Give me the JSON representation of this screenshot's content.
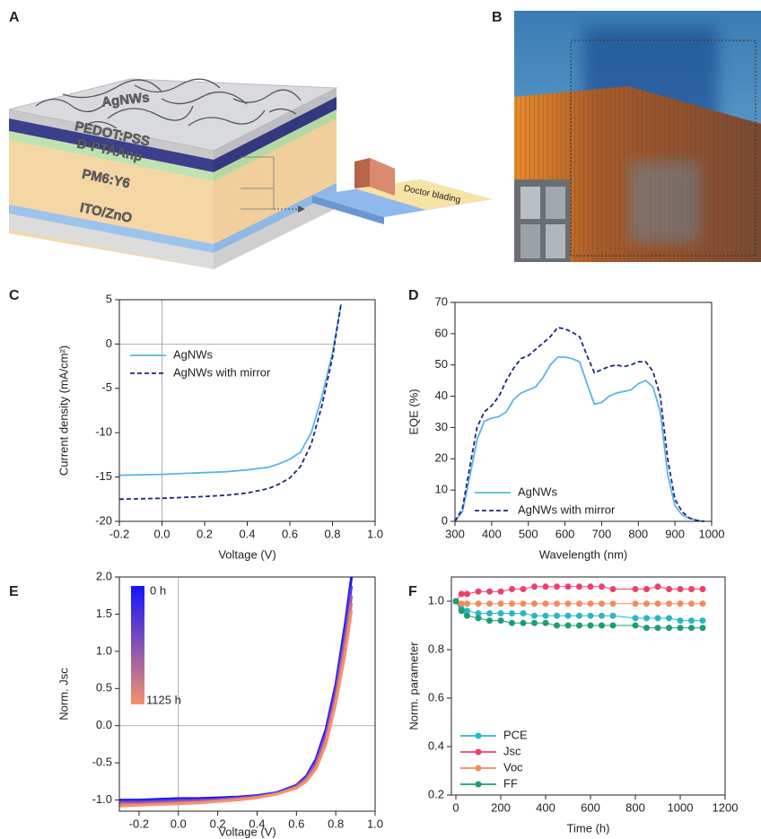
{
  "panel_labels": [
    "A",
    "B",
    "C",
    "D",
    "E",
    "F"
  ],
  "diagram": {
    "layers": [
      "AgNWs",
      "PEDOT:PSS",
      "D-PTAAnp",
      "PM6:Y6",
      "ITO/ZnO"
    ],
    "tool_label": "Doctor blading"
  },
  "chart_data": [
    {
      "type": "line",
      "x_label": "Voltage (V)",
      "y_label": "Current density (mA/cm²)",
      "xlim": [
        -0.2,
        1.0
      ],
      "ylim": [
        -20,
        5
      ],
      "xticks": [
        -0.2,
        {
          "value": 0,
          "label": "0.0"
        },
        0.2,
        0.4,
        0.6,
        0.8,
        {
          "value": 1,
          "label": "1.0"
        }
      ],
      "yticks": [
        -20,
        -15,
        -10,
        -5,
        0,
        5
      ],
      "ref_lines": {
        "x": 0,
        "y": 0
      },
      "legend": "upper left",
      "x": [
        -0.2,
        -0.1,
        0,
        0.1,
        0.2,
        0.3,
        0.4,
        0.5,
        0.55,
        0.6,
        0.65,
        0.7,
        0.75,
        0.8,
        0.84
      ],
      "series": [
        {
          "name": "AgNWs",
          "color": "#5ab4ea",
          "dash": false,
          "values": [
            -14.8,
            -14.75,
            -14.7,
            -14.6,
            -14.5,
            -14.4,
            -14.2,
            -13.9,
            -13.5,
            -13.0,
            -12.2,
            -10,
            -6,
            -1.0,
            4.5
          ]
        },
        {
          "name": "AgNWs with mirror",
          "color": "#1c2a7a",
          "dash": true,
          "values": [
            -17.5,
            -17.45,
            -17.4,
            -17.3,
            -17.2,
            -17.05,
            -16.8,
            -16.3,
            -15.8,
            -15.1,
            -13.8,
            -11.3,
            -7,
            -1.5,
            4.5
          ]
        }
      ]
    },
    {
      "type": "line",
      "x_label": "Wavelength (nm)",
      "y_label": "EQE (%)",
      "xlim": [
        300,
        1000
      ],
      "ylim": [
        0,
        70
      ],
      "xticks": [
        300,
        400,
        500,
        600,
        700,
        800,
        900,
        1000
      ],
      "yticks": [
        0,
        10,
        20,
        30,
        40,
        50,
        60,
        70
      ],
      "legend": "lower center",
      "x": [
        300,
        320,
        340,
        360,
        380,
        400,
        420,
        440,
        460,
        480,
        500,
        520,
        540,
        560,
        580,
        600,
        620,
        640,
        660,
        680,
        700,
        720,
        740,
        760,
        780,
        800,
        820,
        840,
        860,
        880,
        900,
        920,
        940,
        960,
        980
      ],
      "series": [
        {
          "name": "AgNWs",
          "color": "#5ab4ea",
          "dash": false,
          "values": [
            0,
            3,
            14,
            26,
            32,
            33,
            33.5,
            35,
            39,
            41,
            42,
            43,
            46,
            50,
            52.5,
            52.5,
            52,
            51,
            44,
            37.5,
            38,
            40,
            41,
            41.5,
            42,
            44,
            45,
            43,
            35,
            15,
            5,
            2,
            1,
            0.3,
            0
          ]
        },
        {
          "name": "AgNWs with mirror",
          "color": "#1c2a7a",
          "dash": true,
          "values": [
            0,
            4,
            17,
            30,
            35,
            37,
            40,
            45,
            49,
            52,
            53,
            55,
            57,
            59,
            62,
            61.5,
            60.5,
            59,
            53,
            47.5,
            48.5,
            49.5,
            50,
            49.5,
            50,
            51,
            51,
            48,
            40,
            20,
            7,
            3,
            1,
            0.3,
            0
          ]
        }
      ]
    },
    {
      "type": "line",
      "x_label": "Voltage (V)",
      "y_label": "Norm. Jsc",
      "xlim": [
        -0.3,
        1.0
      ],
      "ylim": [
        -1.15,
        2.0
      ],
      "xticks": [
        -0.2,
        {
          "value": 0,
          "label": "0.0"
        },
        0.2,
        0.4,
        0.6,
        0.8,
        {
          "value": 1,
          "label": "1.0"
        }
      ],
      "yticks": [
        {
          "value": -1,
          "label": "-1.0"
        },
        -0.5,
        {
          "value": 0,
          "label": "0.0"
        },
        0.5,
        {
          "value": 1,
          "label": "1.0"
        },
        1.5,
        {
          "value": 2,
          "label": "2.0"
        }
      ],
      "ref_lines": {
        "x": 0,
        "y": 0
      },
      "colorbar": {
        "labels": [
          "0 h",
          "1125 h"
        ],
        "colors": [
          "#1414ff",
          "#f5926a"
        ]
      },
      "x": [
        -0.3,
        -0.2,
        -0.1,
        0,
        0.1,
        0.2,
        0.3,
        0.4,
        0.5,
        0.6,
        0.65,
        0.7,
        0.75,
        0.8,
        0.85,
        0.88
      ],
      "series": [
        {
          "color": "#1414ff",
          "values": [
            -1.0,
            -1.0,
            -0.99,
            -0.98,
            -0.98,
            -0.97,
            -0.96,
            -0.94,
            -0.9,
            -0.8,
            -0.68,
            -0.45,
            -0.05,
            0.55,
            1.4,
            2.0
          ]
        },
        {
          "color": "#5838d6",
          "values": [
            -1.02,
            -1.02,
            -1.01,
            -1.0,
            -1.0,
            -0.99,
            -0.97,
            -0.95,
            -0.91,
            -0.81,
            -0.7,
            -0.48,
            -0.1,
            0.48,
            1.3,
            1.88
          ]
        },
        {
          "color": "#9a58aa",
          "values": [
            -1.04,
            -1.04,
            -1.03,
            -1.02,
            -1.01,
            -1.0,
            -0.98,
            -0.96,
            -0.91,
            -0.82,
            -0.71,
            -0.51,
            -0.15,
            0.42,
            1.2,
            1.75
          ]
        },
        {
          "color": "#d4728a",
          "values": [
            -1.06,
            -1.06,
            -1.05,
            -1.04,
            -1.03,
            -1.01,
            -0.99,
            -0.96,
            -0.92,
            -0.83,
            -0.73,
            -0.55,
            -0.2,
            0.36,
            1.1,
            1.65
          ]
        },
        {
          "color": "#f5926a",
          "values": [
            -1.08,
            -1.07,
            -1.06,
            -1.05,
            -1.04,
            -1.02,
            -1.0,
            -0.97,
            -0.92,
            -0.84,
            -0.75,
            -0.58,
            -0.25,
            0.3,
            1.0,
            1.55
          ]
        }
      ]
    },
    {
      "type": "line",
      "markers": true,
      "x_label": "Time (h)",
      "y_label": "Norm. parameter",
      "xlim": [
        -20,
        1200
      ],
      "ylim": [
        0.2,
        1.1
      ],
      "xticks": [
        0,
        200,
        400,
        600,
        800,
        1000,
        1200
      ],
      "yticks": [
        0.2,
        0.4,
        0.6,
        0.8,
        {
          "value": 1,
          "label": "1.0"
        }
      ],
      "legend": "lower left",
      "x": [
        0,
        25,
        50,
        100,
        150,
        200,
        250,
        300,
        350,
        400,
        450,
        500,
        550,
        600,
        650,
        700,
        800,
        850,
        900,
        950,
        1000,
        1050,
        1100
      ],
      "series": [
        {
          "name": "PCE",
          "color": "#2bb5c8",
          "values": [
            1.0,
            0.97,
            0.96,
            0.95,
            0.95,
            0.95,
            0.95,
            0.95,
            0.94,
            0.94,
            0.94,
            0.94,
            0.94,
            0.94,
            0.94,
            0.94,
            0.93,
            0.93,
            0.93,
            0.93,
            0.92,
            0.92,
            0.92
          ]
        },
        {
          "name": "Jsc",
          "color": "#ee3f6e",
          "values": [
            1.0,
            1.03,
            1.03,
            1.04,
            1.04,
            1.04,
            1.05,
            1.05,
            1.06,
            1.06,
            1.06,
            1.06,
            1.06,
            1.06,
            1.06,
            1.05,
            1.05,
            1.05,
            1.06,
            1.05,
            1.05,
            1.05,
            1.05
          ]
        },
        {
          "name": "Voc",
          "color": "#f28c5a",
          "values": [
            1.0,
            0.99,
            0.99,
            0.99,
            0.99,
            0.99,
            0.99,
            0.99,
            0.99,
            0.99,
            0.99,
            0.99,
            0.99,
            0.99,
            0.99,
            0.99,
            0.99,
            0.99,
            0.99,
            0.99,
            0.99,
            0.99,
            0.99
          ]
        },
        {
          "name": "FF",
          "color": "#1e9c74",
          "values": [
            1.0,
            0.96,
            0.94,
            0.93,
            0.92,
            0.92,
            0.91,
            0.91,
            0.91,
            0.91,
            0.9,
            0.9,
            0.9,
            0.9,
            0.9,
            0.9,
            0.9,
            0.89,
            0.89,
            0.89,
            0.89,
            0.89,
            0.89
          ]
        }
      ]
    }
  ]
}
